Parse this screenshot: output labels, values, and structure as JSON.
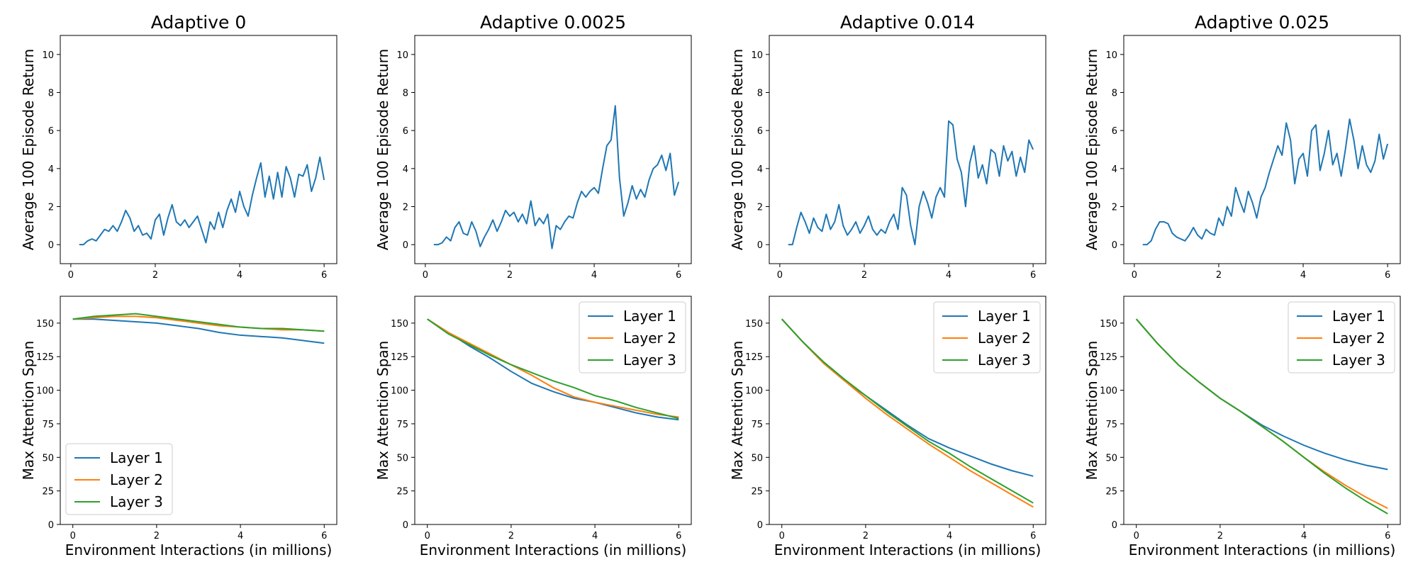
{
  "chart_data": {
    "type": "line",
    "xlabel": "Environment Interactions (in millions)",
    "colors": {
      "Layer 1": "#1f77b4",
      "Layer 2": "#ff7f0e",
      "Layer 3": "#2ca02c"
    },
    "top_row": {
      "ylabel": "Average 100 Episode Return",
      "xlim": [
        -0.25,
        6.3
      ],
      "ylim": [
        -1,
        11
      ],
      "xticks": [
        0,
        2,
        4,
        6
      ],
      "yticks": [
        0,
        2,
        4,
        6,
        8,
        10
      ]
    },
    "bottom_row": {
      "ylabel": "Max Attention Span",
      "xlim": [
        -0.3,
        6.3
      ],
      "ylim": [
        0,
        170
      ],
      "xticks": [
        0,
        2,
        4,
        6
      ],
      "yticks": [
        0,
        25,
        50,
        75,
        100,
        125,
        150
      ]
    },
    "panels": [
      {
        "title": "Adaptive 0",
        "legend_location": "lower-left",
        "return_series": {
          "name": "Layer 1",
          "x": [
            0.2,
            0.3,
            0.4,
            0.5,
            0.6,
            0.7,
            0.8,
            0.9,
            1.0,
            1.1,
            1.2,
            1.3,
            1.4,
            1.5,
            1.6,
            1.7,
            1.8,
            1.9,
            2.0,
            2.1,
            2.2,
            2.3,
            2.4,
            2.5,
            2.6,
            2.7,
            2.8,
            2.9,
            3.0,
            3.1,
            3.2,
            3.3,
            3.4,
            3.5,
            3.6,
            3.7,
            3.8,
            3.9,
            4.0,
            4.1,
            4.2,
            4.3,
            4.4,
            4.5,
            4.6,
            4.7,
            4.8,
            4.9,
            5.0,
            5.1,
            5.2,
            5.3,
            5.4,
            5.5,
            5.6,
            5.7,
            5.8,
            5.9,
            6.0
          ],
          "y": [
            0.0,
            0.0,
            0.2,
            0.3,
            0.2,
            0.5,
            0.8,
            0.7,
            1.0,
            0.7,
            1.2,
            1.8,
            1.4,
            0.7,
            1.0,
            0.5,
            0.6,
            0.3,
            1.3,
            1.6,
            0.5,
            1.4,
            2.1,
            1.2,
            1.0,
            1.3,
            0.9,
            1.2,
            1.5,
            0.8,
            0.1,
            1.2,
            0.8,
            1.7,
            0.9,
            1.8,
            2.4,
            1.7,
            2.8,
            2.0,
            1.5,
            2.6,
            3.5,
            4.3,
            2.5,
            3.6,
            2.4,
            3.8,
            2.5,
            4.1,
            3.5,
            2.5,
            3.7,
            3.6,
            4.2,
            2.8,
            3.5,
            4.6,
            3.4
          ]
        },
        "span_series": [
          {
            "name": "Layer 1",
            "x": [
              0,
              0.5,
              1.0,
              1.5,
              2.0,
              2.5,
              3.0,
              3.5,
              4.0,
              4.5,
              5.0,
              5.5,
              6.0
            ],
            "y": [
              153,
              153,
              152,
              151,
              150,
              148,
              146,
              143,
              141,
              140,
              139,
              137,
              135
            ]
          },
          {
            "name": "Layer 2",
            "x": [
              0,
              0.5,
              1.0,
              1.5,
              2.0,
              2.5,
              3.0,
              3.5,
              4.0,
              4.5,
              5.0,
              5.5,
              6.0
            ],
            "y": [
              153,
              154,
              155,
              155,
              154,
              152,
              150,
              148,
              147,
              146,
              145,
              145,
              144
            ]
          },
          {
            "name": "Layer 3",
            "x": [
              0,
              0.5,
              1.0,
              1.5,
              2.0,
              2.5,
              3.0,
              3.5,
              4.0,
              4.5,
              5.0,
              5.5,
              6.0
            ],
            "y": [
              153,
              155,
              156,
              157,
              155,
              153,
              151,
              149,
              147,
              146,
              146,
              145,
              144
            ]
          }
        ]
      },
      {
        "title": "Adaptive 0.0025",
        "legend_location": "upper-right",
        "return_series": {
          "name": "Layer 1",
          "x": [
            0.2,
            0.3,
            0.4,
            0.5,
            0.6,
            0.7,
            0.8,
            0.9,
            1.0,
            1.1,
            1.2,
            1.3,
            1.4,
            1.5,
            1.6,
            1.7,
            1.8,
            1.9,
            2.0,
            2.1,
            2.2,
            2.3,
            2.4,
            2.5,
            2.6,
            2.7,
            2.8,
            2.9,
            3.0,
            3.1,
            3.2,
            3.3,
            3.4,
            3.5,
            3.6,
            3.7,
            3.8,
            3.9,
            4.0,
            4.1,
            4.2,
            4.3,
            4.4,
            4.5,
            4.6,
            4.7,
            4.8,
            4.9,
            5.0,
            5.1,
            5.2,
            5.3,
            5.4,
            5.5,
            5.6,
            5.7,
            5.8,
            5.9,
            6.0
          ],
          "y": [
            0.0,
            0.0,
            0.1,
            0.4,
            0.2,
            0.9,
            1.2,
            0.6,
            0.5,
            1.2,
            0.7,
            -0.1,
            0.4,
            0.8,
            1.3,
            0.7,
            1.2,
            1.8,
            1.5,
            1.7,
            1.2,
            1.6,
            1.1,
            2.3,
            1.0,
            1.4,
            1.1,
            1.6,
            -0.2,
            1.0,
            0.8,
            1.2,
            1.5,
            1.4,
            2.2,
            2.8,
            2.5,
            2.8,
            3.0,
            2.7,
            4.0,
            5.2,
            5.5,
            7.3,
            3.5,
            1.5,
            2.2,
            3.1,
            2.4,
            2.9,
            2.5,
            3.4,
            4.0,
            4.2,
            4.7,
            3.9,
            4.8,
            2.6,
            3.3
          ]
        },
        "span_series": [
          {
            "name": "Layer 1",
            "x": [
              0,
              0.5,
              1.0,
              1.5,
              2.0,
              2.5,
              3.0,
              3.5,
              4.0,
              4.5,
              5.0,
              5.5,
              6.0
            ],
            "y": [
              153,
              143,
              133,
              124,
              114,
              105,
              99,
              94,
              91,
              87,
              83,
              80,
              78
            ]
          },
          {
            "name": "Layer 2",
            "x": [
              0,
              0.5,
              1.0,
              1.5,
              2.0,
              2.5,
              3.0,
              3.5,
              4.0,
              4.5,
              5.0,
              5.5,
              6.0
            ],
            "y": [
              153,
              143,
              135,
              127,
              119,
              111,
              102,
              95,
              91,
              88,
              85,
              82,
              80
            ]
          },
          {
            "name": "Layer 3",
            "x": [
              0,
              0.5,
              1.0,
              1.5,
              2.0,
              2.5,
              3.0,
              3.5,
              4.0,
              4.5,
              5.0,
              5.5,
              6.0
            ],
            "y": [
              153,
              142,
              134,
              126,
              119,
              113,
              107,
              102,
              96,
              92,
              87,
              83,
              79
            ]
          }
        ]
      },
      {
        "title": "Adaptive 0.014",
        "legend_location": "upper-right",
        "return_series": {
          "name": "Layer 1",
          "x": [
            0.2,
            0.3,
            0.4,
            0.5,
            0.6,
            0.7,
            0.8,
            0.9,
            1.0,
            1.1,
            1.2,
            1.3,
            1.4,
            1.5,
            1.6,
            1.7,
            1.8,
            1.9,
            2.0,
            2.1,
            2.2,
            2.3,
            2.4,
            2.5,
            2.6,
            2.7,
            2.8,
            2.9,
            3.0,
            3.1,
            3.2,
            3.3,
            3.4,
            3.5,
            3.6,
            3.7,
            3.8,
            3.9,
            4.0,
            4.1,
            4.2,
            4.3,
            4.4,
            4.5,
            4.6,
            4.7,
            4.8,
            4.9,
            5.0,
            5.1,
            5.2,
            5.3,
            5.4,
            5.5,
            5.6,
            5.7,
            5.8,
            5.9,
            6.0
          ],
          "y": [
            0.0,
            0.0,
            0.9,
            1.7,
            1.2,
            0.6,
            1.4,
            0.9,
            0.7,
            1.6,
            0.8,
            1.2,
            2.1,
            1.0,
            0.5,
            0.8,
            1.2,
            0.6,
            1.0,
            1.5,
            0.8,
            0.5,
            0.8,
            0.6,
            1.2,
            1.6,
            0.8,
            3.0,
            2.6,
            1.0,
            0.0,
            2.0,
            2.8,
            2.2,
            1.4,
            2.5,
            3.0,
            2.5,
            6.5,
            6.3,
            4.5,
            3.8,
            2.0,
            4.3,
            5.2,
            3.5,
            4.2,
            3.2,
            5.0,
            4.8,
            3.6,
            5.2,
            4.4,
            4.9,
            3.6,
            4.6,
            3.8,
            5.5,
            5.0
          ]
        },
        "span_series": [
          {
            "name": "Layer 1",
            "x": [
              0,
              0.5,
              1.0,
              1.5,
              2.0,
              2.5,
              3.0,
              3.5,
              4.0,
              4.5,
              5.0,
              5.5,
              6.0
            ],
            "y": [
              153,
              136,
              120,
              107,
              96,
              85,
              74,
              64,
              57,
              51,
              45,
              40,
              36
            ]
          },
          {
            "name": "Layer 2",
            "x": [
              0,
              0.5,
              1.0,
              1.5,
              2.0,
              2.5,
              3.0,
              3.5,
              4.0,
              4.5,
              5.0,
              5.5,
              6.0
            ],
            "y": [
              153,
              136,
              120,
              107,
              94,
              82,
              71,
              60,
              50,
              40,
              31,
              22,
              13
            ]
          },
          {
            "name": "Layer 3",
            "x": [
              0,
              0.5,
              1.0,
              1.5,
              2.0,
              2.5,
              3.0,
              3.5,
              4.0,
              4.5,
              5.0,
              5.5,
              6.0
            ],
            "y": [
              153,
              136,
              121,
              108,
              96,
              84,
              73,
              62,
              53,
              43,
              34,
              25,
              16
            ]
          }
        ]
      },
      {
        "title": "Adaptive 0.025",
        "legend_location": "upper-right",
        "return_series": {
          "name": "Layer 1",
          "x": [
            0.2,
            0.3,
            0.4,
            0.5,
            0.6,
            0.7,
            0.8,
            0.9,
            1.0,
            1.1,
            1.2,
            1.3,
            1.4,
            1.5,
            1.6,
            1.7,
            1.8,
            1.9,
            2.0,
            2.1,
            2.2,
            2.3,
            2.4,
            2.5,
            2.6,
            2.7,
            2.8,
            2.9,
            3.0,
            3.1,
            3.2,
            3.3,
            3.4,
            3.5,
            3.6,
            3.7,
            3.8,
            3.9,
            4.0,
            4.1,
            4.2,
            4.3,
            4.4,
            4.5,
            4.6,
            4.7,
            4.8,
            4.9,
            5.0,
            5.1,
            5.2,
            5.3,
            5.4,
            5.5,
            5.6,
            5.7,
            5.8,
            5.9,
            6.0
          ],
          "y": [
            0.0,
            0.0,
            0.2,
            0.8,
            1.2,
            1.2,
            1.1,
            0.6,
            0.4,
            0.3,
            0.2,
            0.5,
            0.9,
            0.5,
            0.3,
            0.8,
            0.6,
            0.5,
            1.4,
            1.0,
            2.0,
            1.5,
            3.0,
            2.3,
            1.7,
            2.8,
            2.2,
            1.4,
            2.5,
            3.0,
            3.8,
            4.5,
            5.2,
            4.7,
            6.4,
            5.5,
            3.2,
            4.5,
            4.8,
            3.6,
            6.0,
            6.3,
            3.9,
            4.8,
            6.0,
            4.2,
            4.8,
            3.6,
            5.0,
            6.6,
            5.5,
            4.0,
            5.2,
            4.2,
            3.8,
            4.4,
            5.8,
            4.5,
            5.3
          ]
        },
        "span_series": [
          {
            "name": "Layer 1",
            "x": [
              0,
              0.5,
              1.0,
              1.5,
              2.0,
              2.5,
              3.0,
              3.5,
              4.0,
              4.5,
              5.0,
              5.5,
              6.0
            ],
            "y": [
              153,
              135,
              119,
              106,
              94,
              84,
              74,
              66,
              59,
              53,
              48,
              44,
              41
            ]
          },
          {
            "name": "Layer 2",
            "x": [
              0,
              0.5,
              1.0,
              1.5,
              2.0,
              2.5,
              3.0,
              3.5,
              4.0,
              4.5,
              5.0,
              5.5,
              6.0
            ],
            "y": [
              153,
              135,
              119,
              106,
              94,
              84,
              73,
              62,
              50,
              39,
              29,
              20,
              12
            ]
          },
          {
            "name": "Layer 3",
            "x": [
              0,
              0.5,
              1.0,
              1.5,
              2.0,
              2.5,
              3.0,
              3.5,
              4.0,
              4.5,
              5.0,
              5.5,
              6.0
            ],
            "y": [
              153,
              135,
              119,
              106,
              94,
              84,
              73,
              62,
              50,
              38,
              27,
              17,
              8
            ]
          }
        ]
      }
    ]
  }
}
